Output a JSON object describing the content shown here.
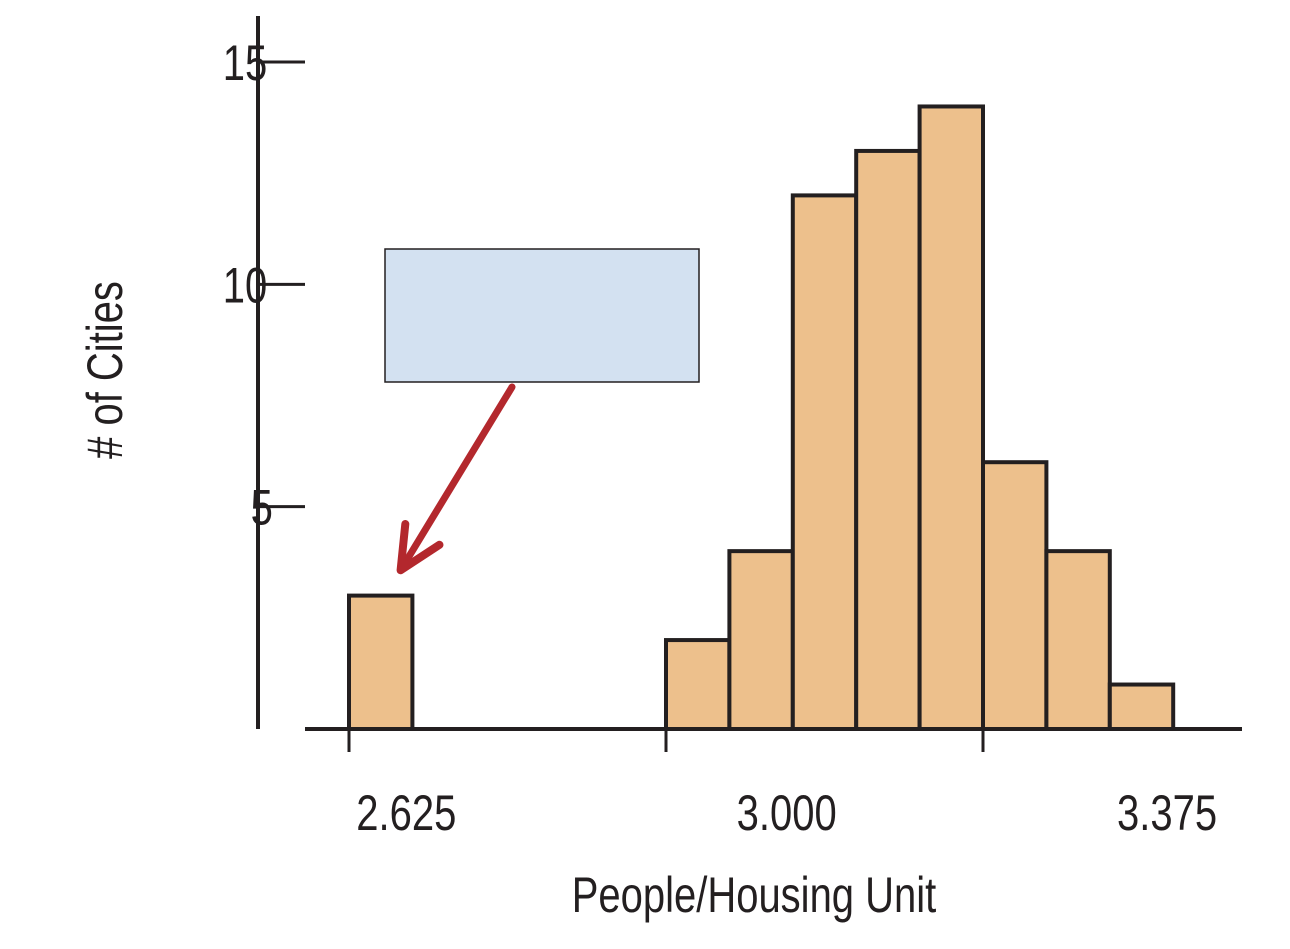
{
  "chart_data": {
    "type": "bar",
    "bins": [
      {
        "x0": 2.625,
        "x1": 2.7,
        "count": 3
      },
      {
        "x0": 2.7,
        "x1": 2.775,
        "count": 0
      },
      {
        "x0": 2.775,
        "x1": 2.85,
        "count": 0
      },
      {
        "x0": 2.85,
        "x1": 2.925,
        "count": 0
      },
      {
        "x0": 2.925,
        "x1": 3.0,
        "count": 0
      },
      {
        "x0": 3.0,
        "x1": 3.075,
        "count": 2
      },
      {
        "x0": 3.075,
        "x1": 3.15,
        "count": 4
      },
      {
        "x0": 3.15,
        "x1": 3.225,
        "count": 12
      },
      {
        "x0": 3.225,
        "x1": 3.3,
        "count": 13
      },
      {
        "x0": 3.3,
        "x1": 3.375,
        "count": 14
      },
      {
        "x0": 3.375,
        "x1": 3.45,
        "count": 6
      },
      {
        "x0": 3.45,
        "x1": 3.525,
        "count": 4
      },
      {
        "x0": 3.525,
        "x1": 3.6,
        "count": 1
      }
    ],
    "xlabel": "People/Housing Unit",
    "ylabel": "# of Cities",
    "xticks": [
      2.625,
      3.0,
      3.375
    ],
    "xtick_labels": [
      "2.625",
      "3.000",
      "3.375"
    ],
    "yticks": [
      5,
      10,
      15
    ],
    "ytick_labels": [
      "5",
      "10",
      "15"
    ],
    "xlim": [
      2.58,
      3.66
    ],
    "ylim": [
      0,
      16
    ],
    "grid": false,
    "annotation": {
      "text": "",
      "target_x": 2.66,
      "target_y": 3.3
    },
    "colors": {
      "bar_fill": "#edc08c",
      "bar_stroke": "#231f20",
      "axis": "#231f20",
      "annotation_box_fill": "#d3e1f1",
      "annotation_box_stroke": "#231f20",
      "arrow": "#b3282d"
    }
  }
}
